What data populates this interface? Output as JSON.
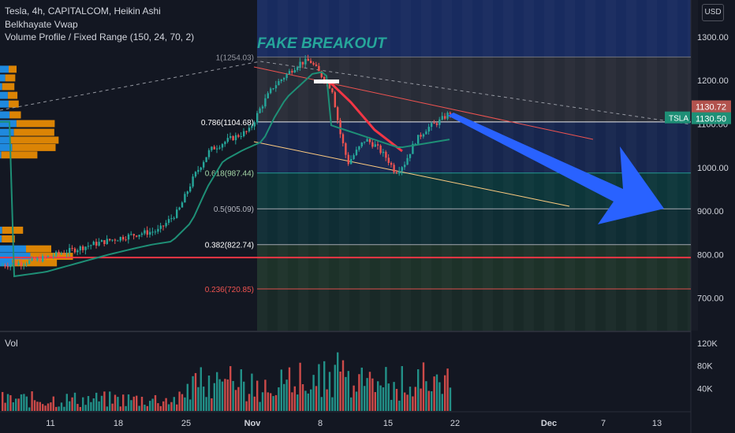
{
  "legend": {
    "line1": "Tesla, 4h, CAPITALCOM, Heikin Ashi",
    "line2": "Belkhayate Vwap",
    "line3": "Volume Profile / Fixed Range (150, 24, 70, 2)"
  },
  "currency": "USD",
  "volume_label": "Vol",
  "annotation": "FAKE BREAKOUT",
  "colors": {
    "background": "#131722",
    "up": "#26a69a",
    "down": "#ef5350",
    "vwap": "#1e8f76",
    "arrow": "#2962ff",
    "profile_up": "#2196f3",
    "profile_down": "#ff9800",
    "poc": "#f23645"
  },
  "chart_data": {
    "type": "candlestick",
    "style": "Heikin Ashi",
    "symbol": "TSLA",
    "interval": "4h",
    "price_axis": {
      "ylim": [
        625,
        1385
      ],
      "ticks": [
        "1300.00",
        "1200.00",
        "1100.00",
        "1000.00",
        "900.00",
        "800.00",
        "700.00"
      ]
    },
    "volume_axis": {
      "ylim": [
        0,
        135000
      ],
      "ticks": [
        "120K",
        "80K",
        "40K"
      ]
    },
    "x_ticks": [
      "11",
      "25",
      "18",
      "Nov",
      "8",
      "15",
      "22",
      "Dec",
      "7",
      "13"
    ],
    "x_tick_order": [
      "11",
      "18",
      "25",
      "Nov",
      "8",
      "15",
      "22",
      "Dec",
      "7",
      "13"
    ],
    "last_price": {
      "label": "TSLA",
      "value": "1130.50"
    },
    "high_marker": {
      "value": "1130.72"
    },
    "poc_price": 793,
    "fibonacci": [
      {
        "ratio": "1",
        "label": "1(1254.03)",
        "value": 1254.03
      },
      {
        "ratio": "0.786",
        "label": "0.786(1104.68)",
        "value": 1104.68
      },
      {
        "ratio": "0.618",
        "label": "0.618(987.44)",
        "value": 987.44
      },
      {
        "ratio": "0.5",
        "label": "0.5(905.09)",
        "value": 905.09
      },
      {
        "ratio": "0.382",
        "label": "0.382(822.74)",
        "value": 822.74
      },
      {
        "ratio": "0.236",
        "label": "0.236(720.85)",
        "value": 720.85
      }
    ],
    "price_path": [
      [
        0,
        775
      ],
      [
        40,
        785
      ],
      [
        80,
        805
      ],
      [
        120,
        825
      ],
      [
        150,
        838
      ],
      [
        175,
        848
      ],
      [
        200,
        855
      ],
      [
        225,
        900
      ],
      [
        245,
        980
      ],
      [
        265,
        1040
      ],
      [
        290,
        1065
      ],
      [
        315,
        1085
      ],
      [
        330,
        1140
      ],
      [
        345,
        1185
      ],
      [
        360,
        1210
      ],
      [
        378,
        1240
      ],
      [
        392,
        1245
      ],
      [
        405,
        1215
      ],
      [
        420,
        1180
      ],
      [
        430,
        1080
      ],
      [
        440,
        1010
      ],
      [
        452,
        1040
      ],
      [
        462,
        1065
      ],
      [
        475,
        1050
      ],
      [
        490,
        1020
      ],
      [
        500,
        990
      ],
      [
        512,
        1010
      ],
      [
        525,
        1060
      ],
      [
        540,
        1090
      ],
      [
        555,
        1105
      ],
      [
        572,
        1130
      ]
    ],
    "volume_profile": {
      "rows": [
        {
          "price": 1225,
          "up": 20,
          "down": 0
        },
        {
          "price": 1205,
          "up": 12,
          "down": 5
        },
        {
          "price": 1185,
          "up": 5,
          "down": 10
        },
        {
          "price": 1165,
          "up": 18,
          "down": 4
        },
        {
          "price": 1145,
          "up": 20,
          "down": 5
        },
        {
          "price": 1120,
          "up": 22,
          "down": 8
        },
        {
          "price": 1100,
          "up": 38,
          "down": 70
        },
        {
          "price": 1080,
          "up": 32,
          "down": 75
        },
        {
          "price": 1062,
          "up": 22,
          "down": 95
        },
        {
          "price": 1045,
          "up": 28,
          "down": 82
        },
        {
          "price": 1028,
          "up": 3,
          "down": 65
        },
        {
          "price": 855,
          "up": 5,
          "down": 30
        },
        {
          "price": 835,
          "up": 4,
          "down": 12
        },
        {
          "price": 812,
          "up": 60,
          "down": 40
        },
        {
          "price": 795,
          "up": 70,
          "down": 80
        },
        {
          "price": 780,
          "up": 28,
          "down": 85
        }
      ]
    }
  }
}
